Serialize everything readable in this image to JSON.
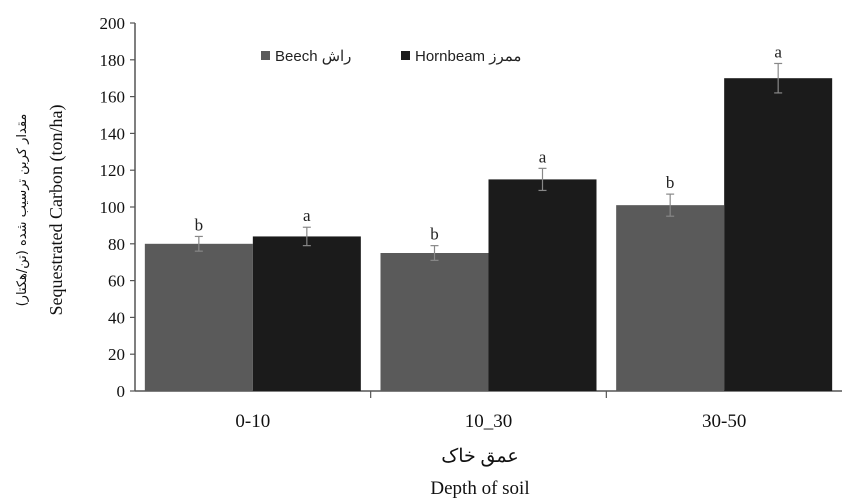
{
  "chart_data": {
    "type": "bar",
    "categories": [
      "0-10",
      "10_30",
      "30-50"
    ],
    "series": [
      {
        "name": "Beech راش",
        "color": "#5a5a5a",
        "values": [
          80,
          75,
          101
        ],
        "error": [
          4,
          4,
          6
        ],
        "letters": [
          "b",
          "b",
          "b"
        ]
      },
      {
        "name": "Hornbeam ممرز",
        "color": "#1b1b1b",
        "values": [
          84,
          115,
          170
        ],
        "error": [
          5,
          6,
          8
        ],
        "letters": [
          "a",
          "a",
          "a"
        ]
      }
    ],
    "ylim": [
      0,
      200
    ],
    "yticks": [
      0,
      20,
      40,
      60,
      80,
      100,
      120,
      140,
      160,
      180,
      200
    ],
    "xlabel_fa": "عمق خاک",
    "xlabel_en": "Depth of soil",
    "ylabel_en": "Sequestrated Carbon (ton/ha)",
    "ylabel_fa": "مقدار کربن ترسیب شده (تن/هکتار)",
    "legend_position": "top-center",
    "grid": false
  }
}
